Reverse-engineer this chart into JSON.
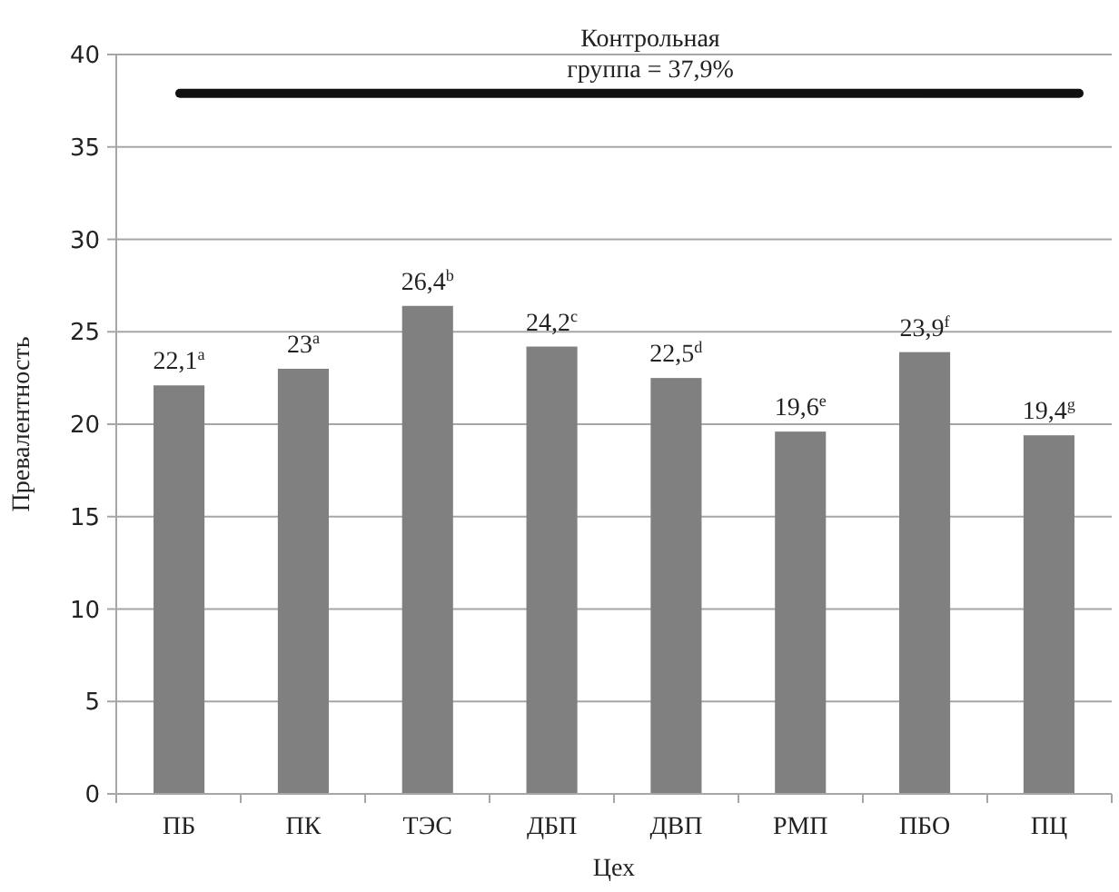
{
  "chart_data": {
    "type": "bar",
    "xlabel": "Цех",
    "ylabel": "Превалентность",
    "categories": [
      "ПБ",
      "ПК",
      "ТЭС",
      "ДБП",
      "ДВП",
      "РМП",
      "ПБО",
      "ПЦ"
    ],
    "values": [
      22.1,
      23,
      26.4,
      24.2,
      22.5,
      19.6,
      23.9,
      19.4
    ],
    "value_labels": [
      "22,1$^{a}$",
      "23$^{a}$",
      "26,4$^{b}$",
      "24,2$^{c}$",
      "22,5$^{d}$",
      "19,6$^{e}$",
      "23,9$^{f}$",
      "19,4$^{g}$"
    ],
    "color": "#808080",
    "ylim": [
      0,
      40
    ],
    "yticks": [
      0,
      5,
      10,
      15,
      20,
      25,
      30,
      35,
      40
    ],
    "grid": "y",
    "ref_lines": [
      {
        "axis": "y",
        "value": 37.9,
        "label": "Контрольная группа = 37,9%",
        "color": "#111111"
      }
    ]
  }
}
